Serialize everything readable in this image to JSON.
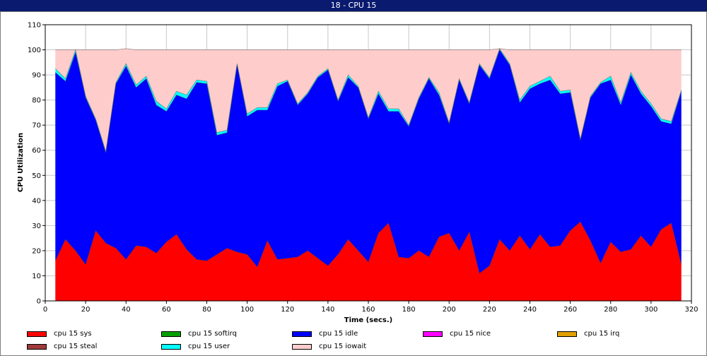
{
  "window": {
    "title": "18 - CPU 15"
  },
  "chart_data": {
    "type": "area",
    "stacked": true,
    "xlabel": "Time (secs.)",
    "ylabel": "CPU Utilization",
    "xlim": [
      0,
      320
    ],
    "ylim": [
      0,
      110
    ],
    "xticks": [
      "0",
      "20",
      "40",
      "60",
      "80",
      "100",
      "120",
      "140",
      "160",
      "180",
      "200",
      "220",
      "240",
      "260",
      "280",
      "300",
      "320"
    ],
    "yticks": [
      "0",
      "10",
      "20",
      "30",
      "40",
      "50",
      "60",
      "70",
      "80",
      "90",
      "100",
      "110"
    ],
    "grid": true,
    "legend_position": "bottom",
    "x": [
      5,
      10,
      15,
      20,
      25,
      30,
      35,
      40,
      45,
      50,
      55,
      60,
      65,
      70,
      75,
      80,
      85,
      90,
      95,
      100,
      105,
      110,
      115,
      120,
      125,
      130,
      135,
      140,
      145,
      150,
      155,
      160,
      165,
      170,
      175,
      180,
      185,
      190,
      195,
      200,
      205,
      210,
      215,
      220,
      225,
      230,
      235,
      240,
      245,
      250,
      255,
      260,
      265,
      270,
      275,
      280,
      285,
      290,
      295,
      300,
      305,
      310,
      315
    ],
    "series": [
      {
        "name": "cpu 15 sys",
        "color": "#ff0000",
        "values": [
          16,
          24.5,
          20,
          14.5,
          28,
          23,
          21,
          16.5,
          22,
          21.5,
          19,
          23.5,
          26.5,
          20.5,
          16.5,
          16,
          18.5,
          21,
          19.5,
          18.5,
          13.5,
          24,
          16.5,
          17,
          17.5,
          20,
          17,
          14,
          18.5,
          24.5,
          20,
          15.5,
          27,
          31,
          17.5,
          17,
          20,
          17.5,
          25.5,
          27,
          20,
          27.5,
          11,
          14,
          24.5,
          20,
          26,
          20.5,
          26.5,
          21.5,
          22,
          28,
          31.5,
          24,
          15,
          23.5,
          19.5,
          20.5,
          26,
          21.5,
          28.5,
          31,
          14.5
        ]
      },
      {
        "name": "cpu 15 softirq",
        "color": "#00a000",
        "values": [
          0,
          0,
          0,
          0,
          0,
          0,
          0,
          0,
          0,
          0,
          0,
          0,
          0,
          0,
          0,
          0,
          0,
          0,
          0,
          0,
          0,
          0,
          0,
          0,
          0,
          0,
          0,
          0,
          0,
          0,
          0,
          0,
          0,
          0,
          0,
          0,
          0,
          0,
          0,
          0,
          0,
          0,
          0,
          0,
          0,
          0,
          0,
          0,
          0,
          0,
          0,
          0,
          0,
          0,
          0,
          0,
          0,
          0,
          0,
          0,
          0,
          0,
          0
        ]
      },
      {
        "name": "cpu 15 idle",
        "color": "#0000ff",
        "values": [
          75,
          63,
          79,
          66.5,
          44,
          36,
          65.5,
          77,
          63,
          67,
          59,
          52,
          55.5,
          60,
          70.5,
          70.5,
          47.5,
          46,
          74.5,
          55,
          62.5,
          52,
          69,
          70.5,
          60.5,
          62.5,
          72,
          78,
          61,
          64.5,
          65,
          57,
          55.5,
          44.5,
          58,
          52.5,
          60.5,
          71,
          56.5,
          43.5,
          68,
          51,
          83,
          74.5,
          75.5,
          74,
          53,
          64,
          60,
          66.5,
          60.5,
          55,
          32.5,
          57,
          71.5,
          64.5,
          58.5,
          69.5,
          56.5,
          56,
          43,
          39.5,
          69
        ]
      },
      {
        "name": "cpu 15 nice",
        "color": "#ff00ff",
        "values": [
          0,
          0,
          0,
          0,
          0,
          0,
          0,
          0,
          0,
          0,
          0,
          0,
          0,
          0,
          0,
          0,
          0,
          0,
          0,
          0,
          0,
          0,
          0,
          0,
          0,
          0,
          0,
          0,
          0,
          0,
          0,
          0,
          0,
          0,
          0,
          0,
          0,
          0,
          0,
          0,
          0,
          0,
          0,
          0,
          0,
          0,
          0,
          0,
          0,
          0,
          0,
          0,
          0,
          0,
          0,
          0,
          0,
          0,
          0,
          0,
          0,
          0,
          0
        ]
      },
      {
        "name": "cpu 15 irq",
        "color": "#e0a000",
        "values": [
          0,
          0,
          0,
          0,
          0,
          0,
          0,
          0,
          0,
          0,
          0,
          0,
          0,
          0,
          0,
          0,
          0,
          0,
          0,
          0,
          0,
          0,
          0,
          0,
          0,
          0,
          0,
          0,
          0,
          0,
          0,
          0,
          0,
          0,
          0,
          0,
          0,
          0,
          0,
          0,
          0,
          0,
          0,
          0,
          0,
          0,
          0,
          0,
          0,
          0,
          0,
          0,
          0,
          0,
          0,
          0,
          0,
          0,
          0,
          0,
          0,
          0,
          0
        ]
      },
      {
        "name": "cpu 15 steal",
        "color": "#a03a3a",
        "values": [
          0,
          0,
          0,
          0,
          0,
          0,
          0,
          0,
          0,
          0,
          0,
          0,
          0,
          0,
          0,
          0,
          0,
          0,
          0,
          0,
          0,
          0,
          0,
          0,
          0,
          0,
          0,
          0,
          0,
          0,
          0,
          0,
          0,
          0,
          0,
          0,
          0,
          0,
          0,
          0,
          0,
          0,
          0,
          0,
          0,
          0,
          0,
          0,
          0,
          0,
          0,
          0,
          0,
          0,
          0,
          0,
          0,
          0,
          0,
          0,
          0,
          0,
          0
        ]
      },
      {
        "name": "cpu 15 user",
        "color": "#00ffff",
        "values": [
          1.5,
          1,
          1,
          0.5,
          0.5,
          0.5,
          0.5,
          1,
          1,
          1,
          1.5,
          1,
          1.5,
          1.5,
          1,
          1,
          1,
          1,
          0.5,
          1,
          1,
          1,
          1,
          0.5,
          0.5,
          0.5,
          0.5,
          0.5,
          0.5,
          1,
          0.5,
          0.5,
          1,
          1,
          1,
          0.5,
          0.5,
          0.5,
          1,
          0.5,
          0.5,
          0.5,
          0.5,
          0.5,
          0.5,
          0.5,
          1,
          1,
          1,
          1.5,
          1,
          1,
          0.5,
          0.5,
          0.5,
          1.5,
          1,
          1,
          1,
          1,
          1,
          1,
          0.5
        ]
      },
      {
        "name": "cpu 15 iowait",
        "color": "#ffcccc",
        "values": [
          7.5,
          11.5,
          0,
          18.5,
          27.5,
          40.5,
          13,
          6,
          14,
          10.5,
          20.5,
          23.5,
          16.5,
          18,
          12,
          12.5,
          33,
          32,
          5.5,
          25.5,
          23,
          23,
          13.5,
          12,
          21.5,
          17,
          10.5,
          7.5,
          20,
          10,
          14.5,
          27,
          16.5,
          23.5,
          23.5,
          30,
          19,
          11,
          17,
          29,
          11.5,
          21,
          5.5,
          11,
          0,
          5.5,
          20,
          14.5,
          12.5,
          10.5,
          16.5,
          16,
          35.5,
          18.5,
          13,
          10.5,
          21,
          9,
          16.5,
          21.5,
          27.5,
          28.5,
          16
        ]
      }
    ]
  }
}
